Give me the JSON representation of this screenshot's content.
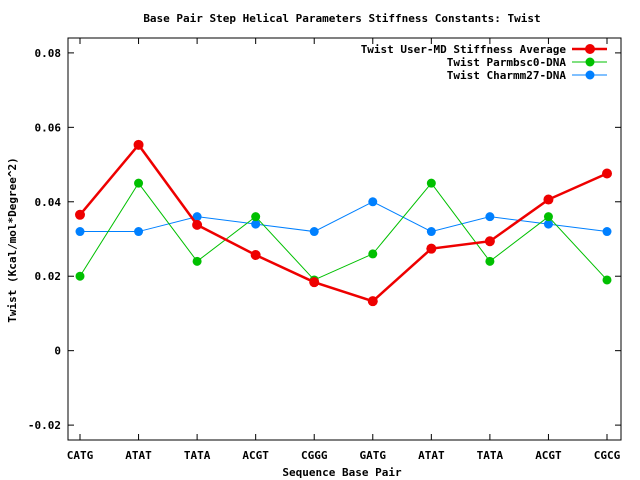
{
  "chart_data": {
    "type": "line",
    "title": "Base Pair Step Helical Parameters Stiffness Constants: Twist",
    "xlabel": "Sequence Base Pair",
    "ylabel": "Twist (Kcal/mol*Degree^2)",
    "categories": [
      "CATG",
      "ATAT",
      "TATA",
      "ACGT",
      "CGGG",
      "GATG",
      "ATAT",
      "TATA",
      "ACGT",
      "CGCG"
    ],
    "ylim": [
      -0.024,
      0.084
    ],
    "yticks": [
      -0.02,
      0,
      0.02,
      0.04,
      0.06,
      0.08
    ],
    "ytick_labels": [
      "-0.02",
      "0",
      "0.02",
      "0.04",
      "0.06",
      "0.08"
    ],
    "legend_position": "top-right",
    "grid": false,
    "series": [
      {
        "name": "Twist User-MD Stiffness Average",
        "color": "#ee0000",
        "values": [
          0.0365,
          0.0553,
          0.0338,
          0.0257,
          0.0184,
          0.0133,
          0.0274,
          0.0294,
          0.0406,
          0.0476
        ]
      },
      {
        "name": "Twist Parmbsc0-DNA",
        "color": "#00c000",
        "values": [
          0.02,
          0.045,
          0.024,
          0.036,
          0.019,
          0.026,
          0.045,
          0.024,
          0.036,
          0.019
        ]
      },
      {
        "name": "Twist Charmm27-DNA",
        "color": "#0080ff",
        "values": [
          0.032,
          0.032,
          0.036,
          0.034,
          0.032,
          0.04,
          0.032,
          0.036,
          0.034,
          0.032
        ]
      }
    ]
  }
}
